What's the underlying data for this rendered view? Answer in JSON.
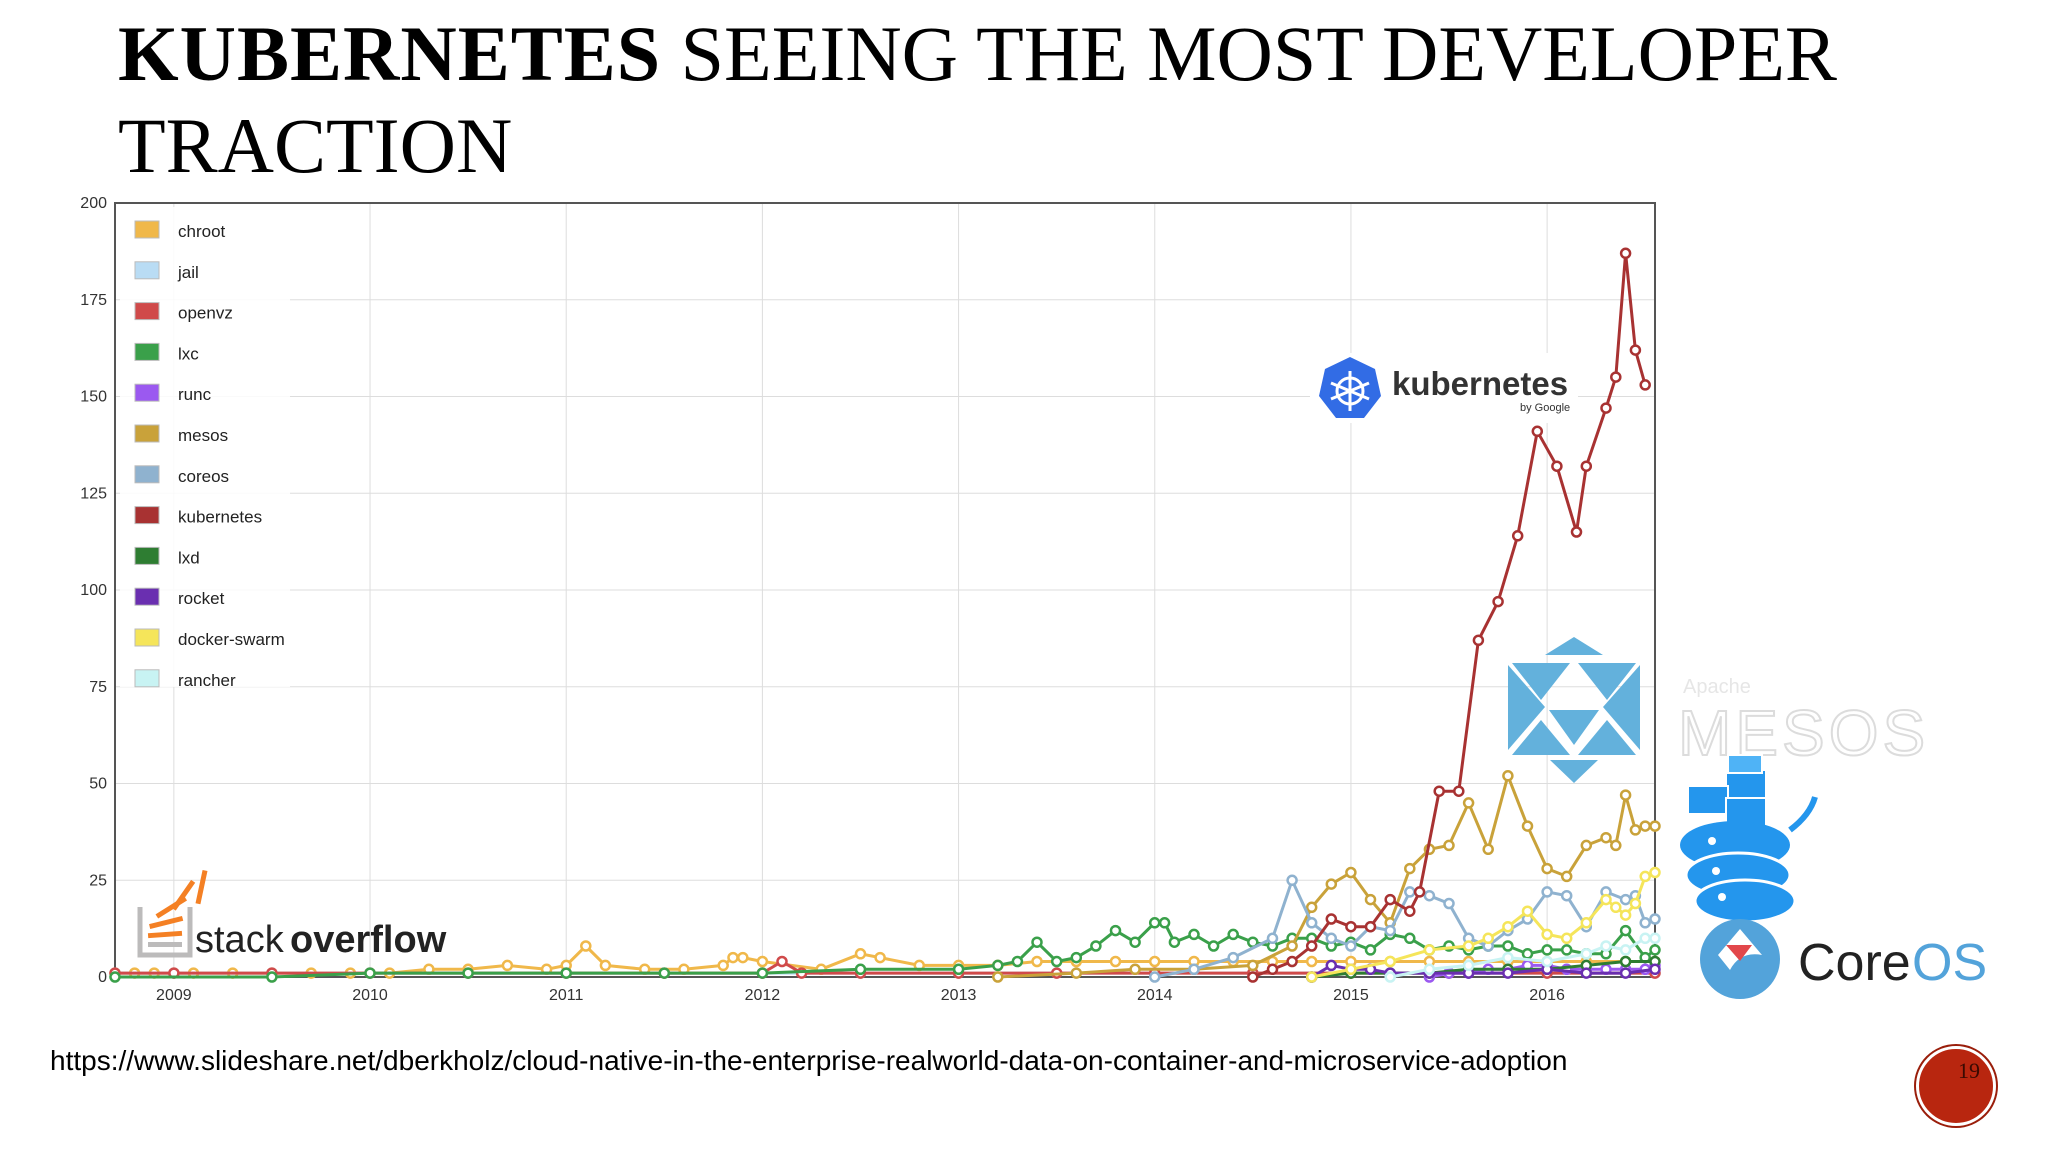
{
  "slide": {
    "title_bold": "KUBERNETES",
    "title_rest": " SEEING THE MOST DEVELOPER TRACTION",
    "source_url": "https://www.slideshare.net/dberkholz/cloud-native-in-the-enterprise-realworld-data-on-container-and-microservice-adoption",
    "page_number": "19"
  },
  "logos": {
    "kubernetes": {
      "name": "kubernetes",
      "by": "by Google",
      "icon": "kubernetes-helm-icon",
      "color": "#326ce5"
    },
    "mesos": {
      "small": "Apache",
      "name": "MESOS",
      "icon": "mesos-icon",
      "color": "#63b1dc"
    },
    "docker": {
      "icon": "docker-swarm-whale-icon",
      "color": "#2496ed"
    },
    "coreos": {
      "name_a": "Core",
      "name_b": "OS",
      "icon": "coreos-icon",
      "color": "#53a3da"
    },
    "stackoverflow": {
      "name_a": "stack",
      "name_b": "overflow",
      "icon": "stackoverflow-icon",
      "color": "#f48024"
    }
  },
  "chart_data": {
    "type": "line",
    "title": "",
    "xlabel": "",
    "ylabel": "",
    "xlim": [
      2008.7,
      2016.55
    ],
    "ylim": [
      0,
      200
    ],
    "yticks": [
      0,
      25,
      50,
      75,
      100,
      125,
      150,
      175,
      200
    ],
    "xticks": [
      2009,
      2010,
      2011,
      2012,
      2013,
      2014,
      2015,
      2016
    ],
    "grid": true,
    "legend_position": "top-left",
    "series": [
      {
        "name": "chroot",
        "color": "#f0b84a",
        "points": [
          [
            2008.7,
            1
          ],
          [
            2008.8,
            1
          ],
          [
            2008.9,
            1
          ],
          [
            2009.0,
            1
          ],
          [
            2009.1,
            1
          ],
          [
            2009.3,
            1
          ],
          [
            2009.5,
            1
          ],
          [
            2009.7,
            1
          ],
          [
            2009.9,
            1
          ],
          [
            2010.1,
            1
          ],
          [
            2010.3,
            2
          ],
          [
            2010.5,
            2
          ],
          [
            2010.7,
            3
          ],
          [
            2010.9,
            2
          ],
          [
            2011.0,
            3
          ],
          [
            2011.1,
            8
          ],
          [
            2011.2,
            3
          ],
          [
            2011.4,
            2
          ],
          [
            2011.6,
            2
          ],
          [
            2011.8,
            3
          ],
          [
            2011.85,
            5
          ],
          [
            2011.9,
            5
          ],
          [
            2012.0,
            4
          ],
          [
            2012.3,
            2
          ],
          [
            2012.5,
            6
          ],
          [
            2012.6,
            5
          ],
          [
            2012.8,
            3
          ],
          [
            2013.0,
            3
          ],
          [
            2013.2,
            3
          ],
          [
            2013.4,
            4
          ],
          [
            2013.6,
            4
          ],
          [
            2013.8,
            4
          ],
          [
            2014.0,
            4
          ],
          [
            2014.2,
            4
          ],
          [
            2014.4,
            4
          ],
          [
            2014.6,
            4
          ],
          [
            2014.8,
            4
          ],
          [
            2015.0,
            4
          ],
          [
            2015.2,
            4
          ],
          [
            2015.4,
            4
          ],
          [
            2015.6,
            4
          ],
          [
            2015.8,
            4
          ],
          [
            2016.0,
            4
          ],
          [
            2016.2,
            4
          ],
          [
            2016.4,
            4
          ],
          [
            2016.55,
            4
          ]
        ]
      },
      {
        "name": "jail",
        "color": "#b9dcf4",
        "points": [
          [
            2008.7,
            1
          ],
          [
            2009.0,
            1
          ],
          [
            2009.5,
            1
          ],
          [
            2010.0,
            1
          ],
          [
            2010.5,
            1
          ],
          [
            2011.0,
            1
          ],
          [
            2011.5,
            1
          ],
          [
            2012.0,
            1
          ],
          [
            2012.5,
            1
          ],
          [
            2013.0,
            1
          ],
          [
            2013.5,
            1
          ],
          [
            2014.0,
            1
          ],
          [
            2014.5,
            1
          ],
          [
            2015.0,
            1
          ],
          [
            2015.5,
            1
          ],
          [
            2016.0,
            1
          ],
          [
            2016.55,
            1
          ]
        ]
      },
      {
        "name": "openvz",
        "color": "#d04a4a",
        "points": [
          [
            2008.7,
            1
          ],
          [
            2009.0,
            1
          ],
          [
            2009.5,
            1
          ],
          [
            2010.0,
            1
          ],
          [
            2010.5,
            1
          ],
          [
            2011.0,
            1
          ],
          [
            2011.5,
            1
          ],
          [
            2012.0,
            1
          ],
          [
            2012.1,
            4
          ],
          [
            2012.2,
            1
          ],
          [
            2012.5,
            1
          ],
          [
            2013.0,
            1
          ],
          [
            2013.5,
            1
          ],
          [
            2014.0,
            1
          ],
          [
            2014.5,
            1
          ],
          [
            2015.0,
            1
          ],
          [
            2015.5,
            1
          ],
          [
            2016.0,
            1
          ],
          [
            2016.55,
            1
          ]
        ]
      },
      {
        "name": "lxc",
        "color": "#3aa04a",
        "points": [
          [
            2008.7,
            0
          ],
          [
            2009.5,
            0
          ],
          [
            2010.0,
            1
          ],
          [
            2010.5,
            1
          ],
          [
            2011.0,
            1
          ],
          [
            2011.5,
            1
          ],
          [
            2012.0,
            1
          ],
          [
            2012.5,
            2
          ],
          [
            2013.0,
            2
          ],
          [
            2013.2,
            3
          ],
          [
            2013.3,
            4
          ],
          [
            2013.4,
            9
          ],
          [
            2013.5,
            4
          ],
          [
            2013.6,
            5
          ],
          [
            2013.7,
            8
          ],
          [
            2013.8,
            12
          ],
          [
            2013.9,
            9
          ],
          [
            2014.0,
            14
          ],
          [
            2014.05,
            14
          ],
          [
            2014.1,
            9
          ],
          [
            2014.2,
            11
          ],
          [
            2014.3,
            8
          ],
          [
            2014.4,
            11
          ],
          [
            2014.5,
            9
          ],
          [
            2014.6,
            8
          ],
          [
            2014.7,
            10
          ],
          [
            2014.8,
            10
          ],
          [
            2014.9,
            8
          ],
          [
            2015.0,
            9
          ],
          [
            2015.1,
            7
          ],
          [
            2015.2,
            11
          ],
          [
            2015.3,
            10
          ],
          [
            2015.4,
            7
          ],
          [
            2015.5,
            8
          ],
          [
            2015.6,
            7
          ],
          [
            2015.7,
            8
          ],
          [
            2015.8,
            8
          ],
          [
            2015.9,
            6
          ],
          [
            2016.0,
            7
          ],
          [
            2016.1,
            7
          ],
          [
            2016.2,
            6
          ],
          [
            2016.3,
            6
          ],
          [
            2016.4,
            12
          ],
          [
            2016.5,
            5
          ],
          [
            2016.55,
            7
          ]
        ]
      },
      {
        "name": "runc",
        "color": "#9b59f0",
        "points": [
          [
            2015.4,
            0
          ],
          [
            2015.5,
            1
          ],
          [
            2015.6,
            1
          ],
          [
            2015.7,
            2
          ],
          [
            2015.8,
            2
          ],
          [
            2015.9,
            3
          ],
          [
            2016.0,
            3
          ],
          [
            2016.1,
            2
          ],
          [
            2016.2,
            2
          ],
          [
            2016.3,
            2
          ],
          [
            2016.4,
            2
          ],
          [
            2016.5,
            2
          ],
          [
            2016.55,
            3
          ]
        ]
      },
      {
        "name": "mesos",
        "color": "#c9a23a",
        "points": [
          [
            2013.2,
            0
          ],
          [
            2013.6,
            1
          ],
          [
            2013.9,
            2
          ],
          [
            2014.2,
            2
          ],
          [
            2014.5,
            3
          ],
          [
            2014.7,
            8
          ],
          [
            2014.8,
            18
          ],
          [
            2014.9,
            24
          ],
          [
            2015.0,
            27
          ],
          [
            2015.1,
            20
          ],
          [
            2015.2,
            14
          ],
          [
            2015.3,
            28
          ],
          [
            2015.4,
            33
          ],
          [
            2015.5,
            34
          ],
          [
            2015.6,
            45
          ],
          [
            2015.7,
            33
          ],
          [
            2015.8,
            52
          ],
          [
            2015.9,
            39
          ],
          [
            2016.0,
            28
          ],
          [
            2016.1,
            26
          ],
          [
            2016.2,
            34
          ],
          [
            2016.3,
            36
          ],
          [
            2016.35,
            34
          ],
          [
            2016.4,
            47
          ],
          [
            2016.45,
            38
          ],
          [
            2016.5,
            39
          ],
          [
            2016.55,
            39
          ]
        ]
      },
      {
        "name": "coreos",
        "color": "#8fb2cf",
        "points": [
          [
            2014.0,
            0
          ],
          [
            2014.2,
            2
          ],
          [
            2014.4,
            5
          ],
          [
            2014.6,
            10
          ],
          [
            2014.7,
            25
          ],
          [
            2014.8,
            14
          ],
          [
            2014.9,
            10
          ],
          [
            2015.0,
            8
          ],
          [
            2015.1,
            13
          ],
          [
            2015.2,
            12
          ],
          [
            2015.3,
            22
          ],
          [
            2015.4,
            21
          ],
          [
            2015.5,
            19
          ],
          [
            2015.6,
            10
          ],
          [
            2015.7,
            8
          ],
          [
            2015.8,
            12
          ],
          [
            2015.9,
            15
          ],
          [
            2016.0,
            22
          ],
          [
            2016.1,
            21
          ],
          [
            2016.2,
            13
          ],
          [
            2016.3,
            22
          ],
          [
            2016.4,
            20
          ],
          [
            2016.45,
            21
          ],
          [
            2016.5,
            14
          ],
          [
            2016.55,
            15
          ]
        ]
      },
      {
        "name": "kubernetes",
        "color": "#a83232",
        "points": [
          [
            2014.5,
            0
          ],
          [
            2014.6,
            2
          ],
          [
            2014.7,
            4
          ],
          [
            2014.8,
            8
          ],
          [
            2014.9,
            15
          ],
          [
            2015.0,
            13
          ],
          [
            2015.1,
            13
          ],
          [
            2015.2,
            20
          ],
          [
            2015.3,
            17
          ],
          [
            2015.35,
            22
          ],
          [
            2015.45,
            48
          ],
          [
            2015.55,
            48
          ],
          [
            2015.65,
            87
          ],
          [
            2015.75,
            97
          ],
          [
            2015.85,
            114
          ],
          [
            2015.95,
            141
          ],
          [
            2016.05,
            132
          ],
          [
            2016.15,
            115
          ],
          [
            2016.2,
            132
          ],
          [
            2016.3,
            147
          ],
          [
            2016.35,
            155
          ],
          [
            2016.4,
            187
          ],
          [
            2016.45,
            162
          ],
          [
            2016.5,
            153
          ]
        ]
      },
      {
        "name": "lxd",
        "color": "#2e7d32",
        "points": [
          [
            2014.8,
            0
          ],
          [
            2015.0,
            1
          ],
          [
            2015.2,
            1
          ],
          [
            2015.4,
            1
          ],
          [
            2015.6,
            2
          ],
          [
            2015.8,
            2
          ],
          [
            2016.0,
            2
          ],
          [
            2016.2,
            3
          ],
          [
            2016.4,
            4
          ],
          [
            2016.55,
            4
          ]
        ]
      },
      {
        "name": "rocket",
        "color": "#6a2fb0",
        "points": [
          [
            2014.8,
            0
          ],
          [
            2014.9,
            3
          ],
          [
            2015.0,
            2
          ],
          [
            2015.1,
            2
          ],
          [
            2015.2,
            1
          ],
          [
            2015.4,
            1
          ],
          [
            2015.6,
            1
          ],
          [
            2015.8,
            1
          ],
          [
            2016.0,
            2
          ],
          [
            2016.2,
            1
          ],
          [
            2016.4,
            1
          ],
          [
            2016.55,
            2
          ]
        ]
      },
      {
        "name": "docker-swarm",
        "color": "#f5e55a",
        "points": [
          [
            2014.8,
            0
          ],
          [
            2015.0,
            2
          ],
          [
            2015.2,
            4
          ],
          [
            2015.4,
            7
          ],
          [
            2015.6,
            8
          ],
          [
            2015.7,
            10
          ],
          [
            2015.8,
            13
          ],
          [
            2015.9,
            17
          ],
          [
            2016.0,
            11
          ],
          [
            2016.1,
            10
          ],
          [
            2016.2,
            14
          ],
          [
            2016.3,
            20
          ],
          [
            2016.35,
            18
          ],
          [
            2016.4,
            16
          ],
          [
            2016.45,
            19
          ],
          [
            2016.5,
            26
          ],
          [
            2016.55,
            27
          ]
        ]
      },
      {
        "name": "rancher",
        "color": "#c8f3f3",
        "points": [
          [
            2015.2,
            0
          ],
          [
            2015.4,
            2
          ],
          [
            2015.6,
            3
          ],
          [
            2015.8,
            5
          ],
          [
            2016.0,
            4
          ],
          [
            2016.2,
            6
          ],
          [
            2016.3,
            8
          ],
          [
            2016.4,
            7
          ],
          [
            2016.5,
            10
          ],
          [
            2016.55,
            10
          ]
        ]
      }
    ]
  }
}
